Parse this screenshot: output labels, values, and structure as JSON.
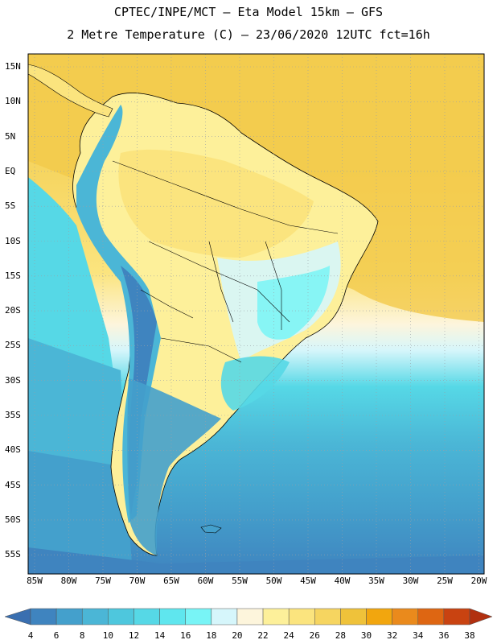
{
  "header": {
    "line1": "CPTEC/INPE/MCT –  Eta Model 15km – GFS",
    "line2": "2 Metre Temperature (C) – 23/06/2020 12UTC fct=16h"
  },
  "axes": {
    "lat_labels": [
      "15N",
      "10N",
      "5N",
      "EQ",
      "5S",
      "10S",
      "15S",
      "20S",
      "25S",
      "30S",
      "35S",
      "40S",
      "45S",
      "50S",
      "55S"
    ],
    "lon_labels": [
      "85W",
      "80W",
      "75W",
      "70W",
      "65W",
      "60W",
      "55W",
      "50W",
      "45W",
      "40W",
      "35W",
      "30W",
      "25W",
      "20W"
    ]
  },
  "colorbar": {
    "labels": [
      "4",
      "6",
      "8",
      "10",
      "12",
      "14",
      "16",
      "18",
      "20",
      "22",
      "24",
      "26",
      "28",
      "30",
      "32",
      "34",
      "36",
      "38"
    ],
    "colors": [
      "#3a6fb0",
      "#3f84bf",
      "#44a0cc",
      "#4bb6d6",
      "#4ec7dd",
      "#56d8e6",
      "#5fe6ee",
      "#78f4f6",
      "#d6f6fb",
      "#fdf5dc",
      "#fdf09a",
      "#fbe47e",
      "#f6d560",
      "#efc23a",
      "#f2a60e",
      "#ea8a1c",
      "#de6612",
      "#c94311",
      "#b13010"
    ]
  }
}
